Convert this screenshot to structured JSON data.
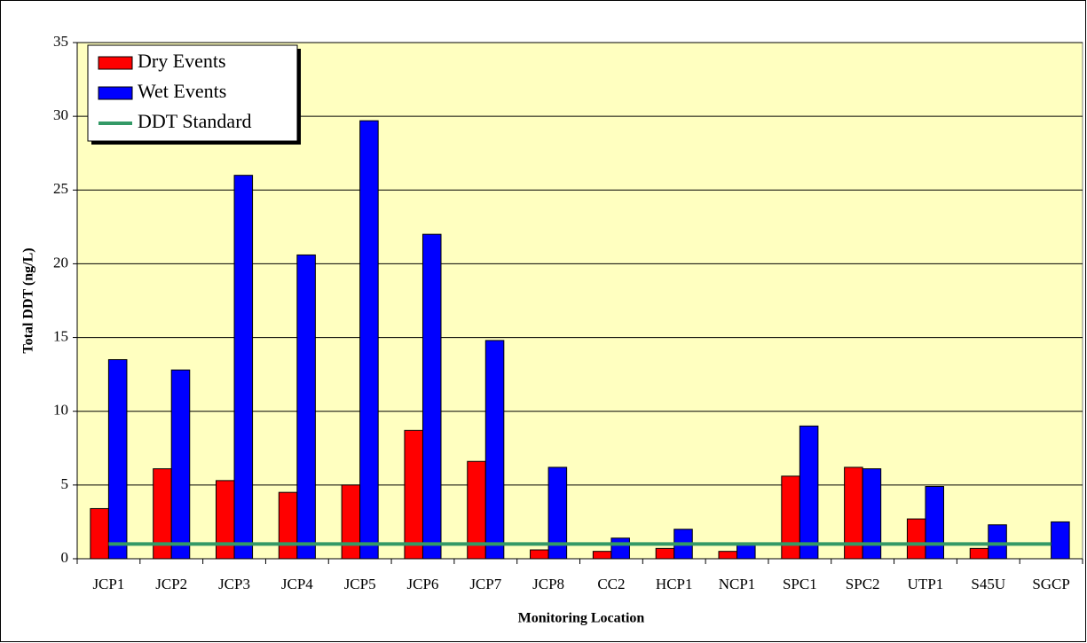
{
  "chart_data": {
    "type": "bar",
    "x_label": "Monitoring Location",
    "y_label": "Total DDT (ng/L)",
    "categories": [
      "JCP1",
      "JCP2",
      "JCP3",
      "JCP4",
      "JCP5",
      "JCP6",
      "JCP7",
      "JCP8",
      "CC2",
      "HCP1",
      "NCP1",
      "SPC1",
      "SPC2",
      "UTP1",
      "S45U",
      "SGCP"
    ],
    "series": [
      {
        "name": "Dry Events",
        "type": "bar",
        "color": "#ff0000",
        "values": [
          3.4,
          6.1,
          5.3,
          4.5,
          5.0,
          8.7,
          6.6,
          0.6,
          0.5,
          0.7,
          0.5,
          5.6,
          6.2,
          2.7,
          0.7,
          null
        ]
      },
      {
        "name": "Wet Events",
        "type": "bar",
        "color": "#0000ff",
        "values": [
          13.5,
          12.8,
          26.0,
          20.6,
          29.7,
          22.0,
          14.8,
          6.2,
          1.4,
          2.0,
          1.0,
          9.0,
          6.1,
          4.9,
          2.3,
          2.5
        ]
      },
      {
        "name": "DDT Standard",
        "type": "line",
        "color": "#339966",
        "values": [
          1,
          1,
          1,
          1,
          1,
          1,
          1,
          1,
          1,
          1,
          1,
          1,
          1,
          1,
          1,
          1
        ]
      }
    ],
    "ylim": [
      0,
      35
    ],
    "yticks": [
      0,
      5,
      10,
      15,
      20,
      25,
      30,
      35
    ],
    "grid": true,
    "legend": "top-left",
    "background": "#ffffc0"
  }
}
